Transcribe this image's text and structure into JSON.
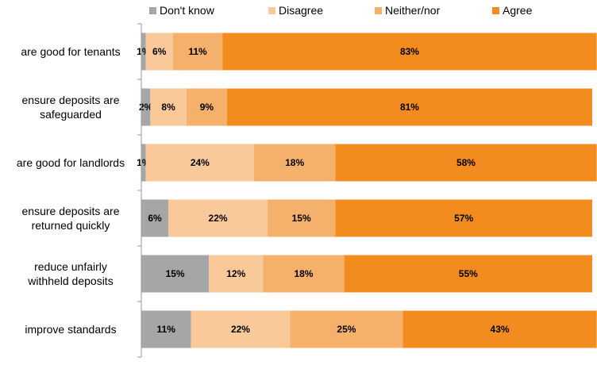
{
  "chart_data": {
    "type": "bar",
    "orientation": "horizontal",
    "stacked": true,
    "normalized_percent": true,
    "categories": [
      "are good for tenants",
      "ensure deposits are safeguarded",
      "are good for landlords",
      "ensure deposits are returned quickly",
      "reduce unfairly withheld deposits",
      "improve standards"
    ],
    "category_lines": [
      [
        "are good for tenants"
      ],
      [
        "ensure deposits are",
        "safeguarded"
      ],
      [
        "are good for landlords"
      ],
      [
        "ensure deposits are",
        "returned quickly"
      ],
      [
        "reduce unfairly",
        "withheld deposits"
      ],
      [
        "improve standards"
      ]
    ],
    "series": [
      {
        "name": "Don't know",
        "color": "#a6a6a6",
        "values": [
          1,
          2,
          1,
          6,
          15,
          11
        ]
      },
      {
        "name": "Disagree",
        "color": "#f9c99a",
        "values": [
          6,
          8,
          24,
          22,
          12,
          22
        ]
      },
      {
        "name": "Neither/nor",
        "color": "#f5b16b",
        "values": [
          11,
          9,
          18,
          15,
          18,
          25
        ]
      },
      {
        "name": "Agree",
        "color": "#f28c1e",
        "values": [
          83,
          81,
          58,
          57,
          55,
          43
        ]
      }
    ],
    "data_label_format": "{v}%",
    "legend": "top",
    "grid": false,
    "xlim": [
      0,
      100
    ]
  }
}
